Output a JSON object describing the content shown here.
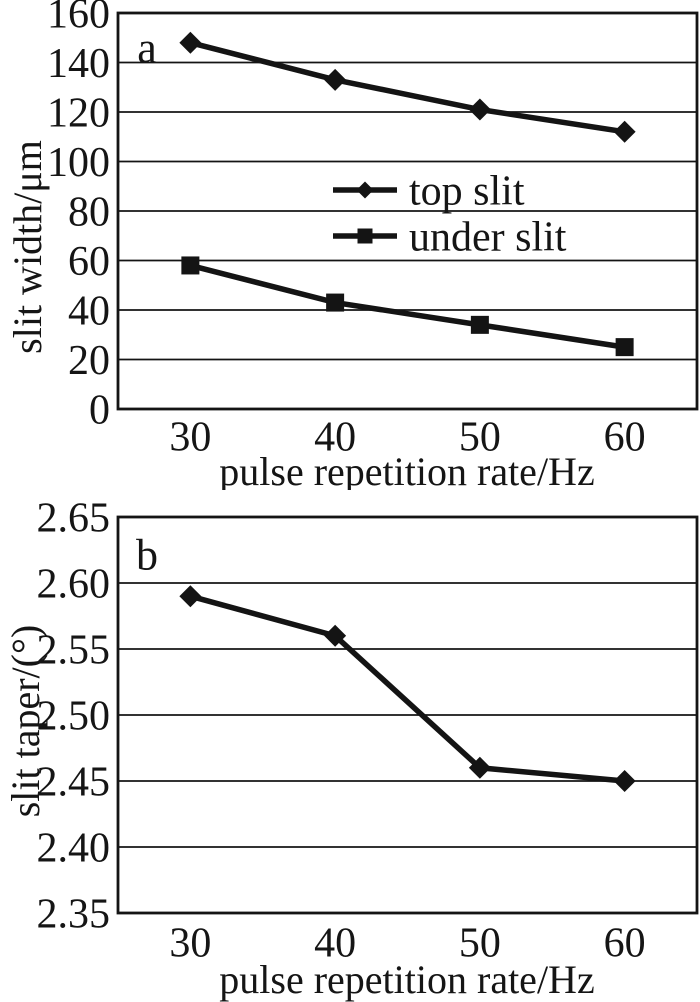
{
  "figure_title": "",
  "style": {
    "ink": "#141414",
    "background": "#ffffff"
  },
  "chart_data": [
    {
      "type": "line",
      "panel_label": "a",
      "x_type": "category",
      "x": [
        30,
        40,
        50,
        60
      ],
      "xlabel": "pulse repetition rate/Hz",
      "ylabel": "slit width/μm",
      "ylim": [
        0,
        160
      ],
      "ytick_step": 20,
      "ytick_decimals": 0,
      "grid": "horizontal",
      "legend_position": "inside top-center",
      "series": [
        {
          "name": "top slit",
          "marker": "diamond",
          "values": [
            148,
            133,
            121,
            112
          ]
        },
        {
          "name": "under slit",
          "marker": "square",
          "values": [
            58,
            43,
            34,
            25
          ]
        }
      ]
    },
    {
      "type": "line",
      "panel_label": "b",
      "x_type": "category",
      "x": [
        30,
        40,
        50,
        60
      ],
      "xlabel": "pulse repetition rate/Hz",
      "ylabel": "slit taper/(°)",
      "ylim": [
        2.35,
        2.65
      ],
      "ytick_step": 0.05,
      "ytick_decimals": 2,
      "grid": "horizontal",
      "legend_position": "none",
      "series": [
        {
          "name": "slit taper",
          "marker": "diamond",
          "values": [
            2.59,
            2.56,
            2.46,
            2.45
          ]
        }
      ]
    }
  ]
}
